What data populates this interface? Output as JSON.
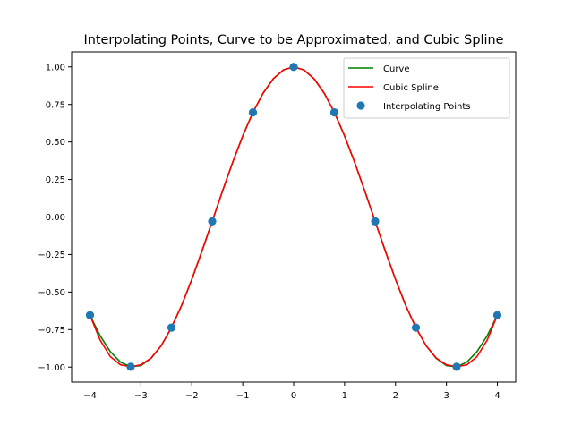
{
  "chart_data": {
    "type": "line",
    "title": "Interpolating Points, Curve to be Approximated, and Cubic Spline",
    "xlabel": "",
    "ylabel": "",
    "xlim": [
      -4.36,
      4.36
    ],
    "ylim": [
      -1.1,
      1.1
    ],
    "x_ticks": [
      -4,
      -3,
      -2,
      -1,
      0,
      1,
      2,
      3,
      4
    ],
    "x_tick_labels": [
      "−4",
      "−3",
      "−2",
      "−1",
      "0",
      "1",
      "2",
      "3",
      "4"
    ],
    "y_ticks": [
      -1.0,
      -0.75,
      -0.5,
      -0.25,
      0.0,
      0.25,
      0.5,
      0.75,
      1.0
    ],
    "y_tick_labels": [
      "−1.00",
      "−0.75",
      "−0.50",
      "−0.25",
      "0.00",
      "0.25",
      "0.50",
      "0.75",
      "1.00"
    ],
    "grid": false,
    "legend_position": "top-right",
    "series": [
      {
        "name": "Curve",
        "kind": "line",
        "color": "#008000",
        "x": [
          -4.0,
          -3.8,
          -3.6,
          -3.4,
          -3.2,
          -3.0,
          -2.8,
          -2.6,
          -2.4,
          -2.2,
          -2.0,
          -1.8,
          -1.6,
          -1.4,
          -1.2,
          -1.0,
          -0.8,
          -0.6,
          -0.4,
          -0.2,
          0.0,
          0.2,
          0.4,
          0.6,
          0.8,
          1.0,
          1.2,
          1.4,
          1.6,
          1.8,
          2.0,
          2.2,
          2.4,
          2.6,
          2.8,
          3.0,
          3.2,
          3.4,
          3.6,
          3.8,
          4.0
        ],
        "y": [
          -0.654,
          -0.791,
          -0.897,
          -0.967,
          -0.998,
          -0.99,
          -0.942,
          -0.857,
          -0.737,
          -0.589,
          -0.416,
          -0.227,
          -0.029,
          0.17,
          0.362,
          0.54,
          0.697,
          0.825,
          0.921,
          0.98,
          1.0,
          0.98,
          0.921,
          0.825,
          0.697,
          0.54,
          0.362,
          0.17,
          -0.029,
          -0.227,
          -0.416,
          -0.589,
          -0.737,
          -0.857,
          -0.942,
          -0.99,
          -0.998,
          -0.967,
          -0.897,
          -0.791,
          -0.654
        ]
      },
      {
        "name": "Cubic Spline",
        "kind": "line",
        "color": "#ff0000",
        "x": [
          -4.0,
          -3.8,
          -3.6,
          -3.4,
          -3.2,
          -3.0,
          -2.8,
          -2.6,
          -2.4,
          -2.2,
          -2.0,
          -1.8,
          -1.6,
          -1.4,
          -1.2,
          -1.0,
          -0.8,
          -0.6,
          -0.4,
          -0.2,
          0.0,
          0.2,
          0.4,
          0.6,
          0.8,
          1.0,
          1.2,
          1.4,
          1.6,
          1.8,
          2.0,
          2.2,
          2.4,
          2.6,
          2.8,
          3.0,
          3.2,
          3.4,
          3.6,
          3.8,
          4.0
        ],
        "y": [
          -0.654,
          -0.82,
          -0.93,
          -0.985,
          -0.998,
          -0.985,
          -0.94,
          -0.857,
          -0.737,
          -0.589,
          -0.416,
          -0.227,
          -0.029,
          0.17,
          0.362,
          0.54,
          0.697,
          0.825,
          0.921,
          0.98,
          1.0,
          0.98,
          0.921,
          0.825,
          0.697,
          0.54,
          0.362,
          0.17,
          -0.029,
          -0.227,
          -0.416,
          -0.589,
          -0.737,
          -0.857,
          -0.94,
          -0.985,
          -0.998,
          -0.985,
          -0.93,
          -0.82,
          -0.654
        ]
      },
      {
        "name": "Interpolating Points",
        "kind": "scatter",
        "color": "#1f77b4",
        "x": [
          -4.0,
          -3.2,
          -2.4,
          -1.6,
          -0.8,
          0.0,
          0.8,
          1.6,
          2.4,
          3.2,
          4.0
        ],
        "y": [
          -0.654,
          -0.998,
          -0.737,
          -0.029,
          0.697,
          1.0,
          0.697,
          -0.029,
          -0.737,
          -0.998,
          -0.654
        ]
      }
    ]
  }
}
